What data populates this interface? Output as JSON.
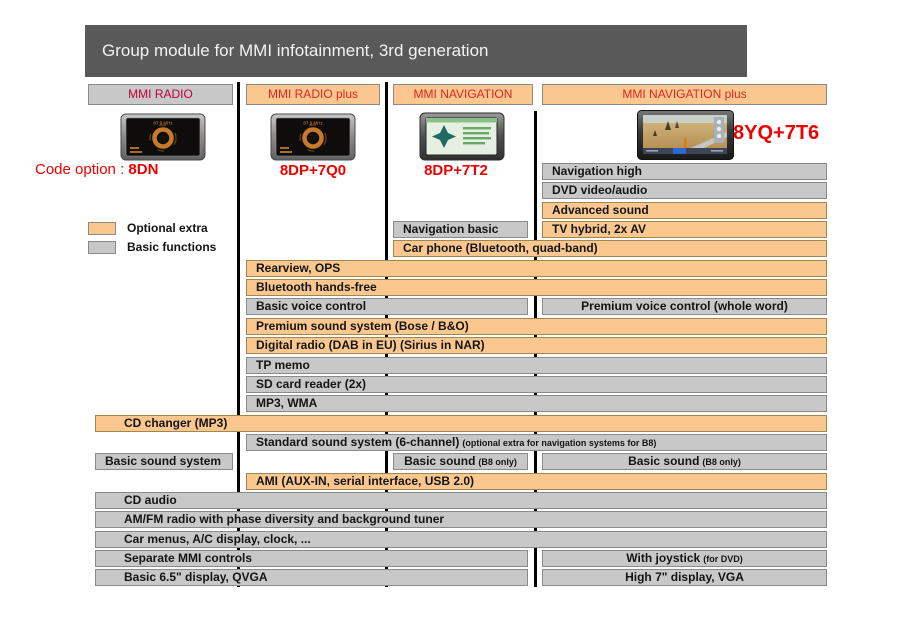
{
  "title": "Group module for MMI infotainment, 3rd generation",
  "legend": {
    "optional": {
      "label": "Optional extra"
    },
    "basic": {
      "label": "Basic functions"
    }
  },
  "columns": [
    {
      "label": "MMI RADIO",
      "code_prefix": "Code option : ",
      "code": "8DN",
      "device": "radio-display"
    },
    {
      "label": "MMI RADIO plus",
      "code": "8DP+7Q0",
      "device": "radio-display"
    },
    {
      "label": "MMI NAVIGATION",
      "code": "8DP+7T2",
      "device": "navigation-display"
    },
    {
      "label": "MMI NAVIGATION plus",
      "code": "8YQ+7T6",
      "device": "navigation-plus-display"
    }
  ],
  "colors": {
    "optional_fill": "#fac88f",
    "basic_fill": "#c8c8c8",
    "title_bg": "#595959",
    "code_red": "#ee0000",
    "header_red": "#e02424",
    "radio_header_text": "#c00038"
  },
  "features": [
    {
      "row": 0,
      "from": 4,
      "to": 4,
      "style": "basic",
      "label": "Navigation high"
    },
    {
      "row": 1,
      "from": 4,
      "to": 4,
      "style": "basic",
      "label": "DVD video/audio"
    },
    {
      "row": 2,
      "from": 4,
      "to": 4,
      "style": "optional",
      "label": "Advanced sound"
    },
    {
      "row": 3,
      "from": 3,
      "to": 3,
      "style": "basic",
      "label": "Navigation basic"
    },
    {
      "row": 3,
      "from": 4,
      "to": 4,
      "style": "optional",
      "label": "TV hybrid, 2x AV"
    },
    {
      "row": 4,
      "from": 3,
      "to": 4,
      "style": "optional",
      "label": "Car phone (Bluetooth, quad-band)"
    },
    {
      "row": 5,
      "from": 2,
      "to": 4,
      "style": "optional",
      "label": "Rearview, OPS"
    },
    {
      "row": 6,
      "from": 2,
      "to": 4,
      "style": "optional",
      "label": "Bluetooth hands-free"
    },
    {
      "row": 7,
      "from": 2,
      "to": 3,
      "style": "basic",
      "label": "Basic voice control"
    },
    {
      "row": 7,
      "from": 4,
      "to": 4,
      "style": "basic",
      "align": "center",
      "label": "Premium voice control (whole word)"
    },
    {
      "row": 8,
      "from": 2,
      "to": 4,
      "style": "optional",
      "label": "Premium sound system (Bose / B&O)"
    },
    {
      "row": 9,
      "from": 2,
      "to": 4,
      "style": "optional",
      "label": "Digital radio (DAB in EU) (Sirius in NAR)"
    },
    {
      "row": 10,
      "from": 2,
      "to": 4,
      "style": "basic",
      "label": "TP memo"
    },
    {
      "row": 11,
      "from": 2,
      "to": 4,
      "style": "basic",
      "label": "SD card reader (2x)"
    },
    {
      "row": 12,
      "from": 2,
      "to": 4,
      "style": "basic",
      "label": "MP3, WMA"
    },
    {
      "row": 13,
      "from": 1,
      "to": 4,
      "style": "optional",
      "label": "CD changer (MP3)"
    },
    {
      "row": 14,
      "from": 2,
      "to": 4,
      "style": "basic",
      "label": "Standard sound system (6-channel)",
      "note": "(optional extra for navigation systems for B8)"
    },
    {
      "row": 15,
      "from": 1,
      "to": 1,
      "style": "basic",
      "label": "Basic sound system"
    },
    {
      "row": 15,
      "from": 3,
      "to": 3,
      "style": "basic",
      "align": "center",
      "label": "Basic sound",
      "note": "(B8 only)"
    },
    {
      "row": 15,
      "from": 4,
      "to": 4,
      "style": "basic",
      "align": "center",
      "label": "Basic sound",
      "note": "(B8 only)"
    },
    {
      "row": 16,
      "from": 2,
      "to": 4,
      "style": "optional",
      "label": "AMI (AUX-IN, serial interface, USB 2.0)"
    },
    {
      "row": 17,
      "from": 1,
      "to": 4,
      "style": "basic",
      "label": "CD audio"
    },
    {
      "row": 18,
      "from": 1,
      "to": 4,
      "style": "basic",
      "label": "AM/FM radio with phase diversity and background tuner"
    },
    {
      "row": 19,
      "from": 1,
      "to": 4,
      "style": "basic",
      "label": "Car menus, A/C display, clock, ..."
    },
    {
      "row": 20,
      "from": 1,
      "to": 3,
      "style": "basic",
      "label": "Separate MMI controls"
    },
    {
      "row": 20,
      "from": 4,
      "to": 4,
      "style": "basic",
      "align": "center",
      "label": "With joystick",
      "note": "(for DVD)"
    },
    {
      "row": 21,
      "from": 1,
      "to": 3,
      "style": "basic",
      "label": "Basic 6.5\" display, QVGA"
    },
    {
      "row": 21,
      "from": 4,
      "to": 4,
      "style": "basic",
      "align": "center",
      "label": "High 7\" display, VGA"
    }
  ]
}
